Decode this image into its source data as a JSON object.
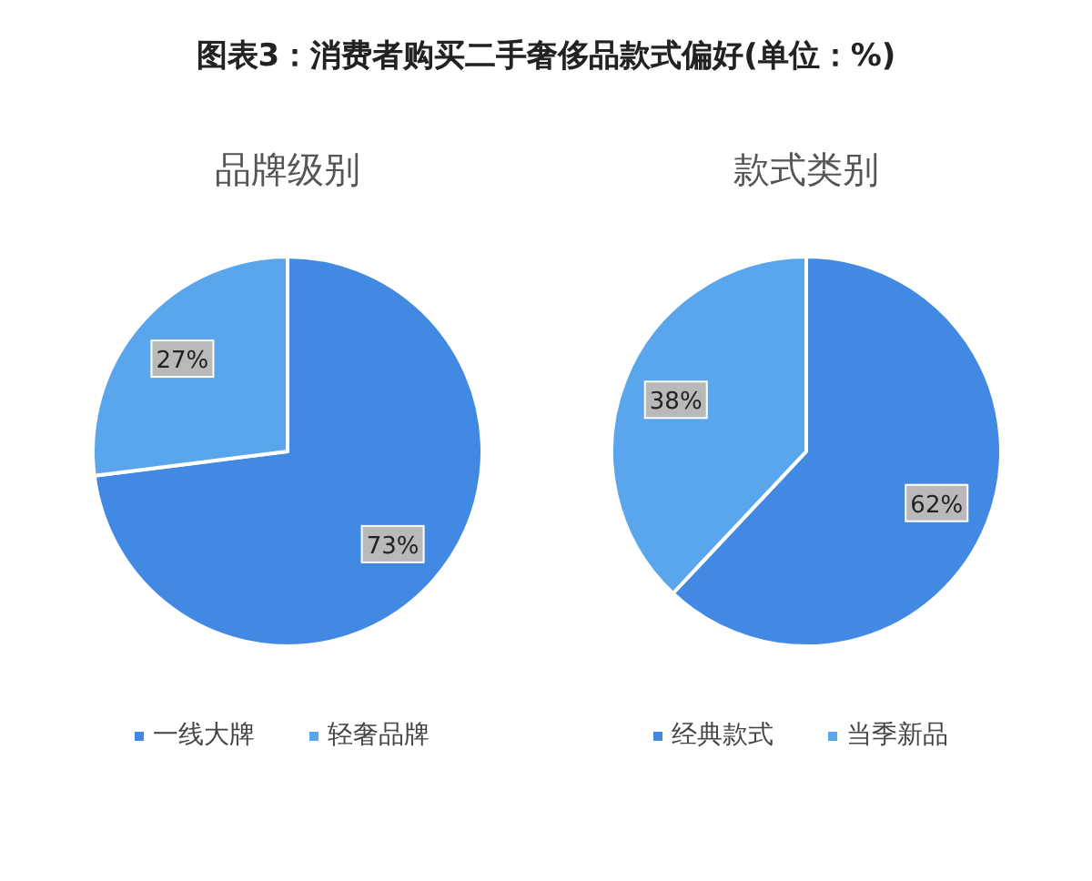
{
  "chart_data": [
    {
      "type": "pie",
      "title": "图表3：消费者购买二手奢侈品款式偏好(单位：%)",
      "subtitle": "品牌级别",
      "categories": [
        "一线大牌",
        "轻奢品牌"
      ],
      "values": [
        73,
        27
      ],
      "colors": [
        "#4289e3",
        "#5aa6ec"
      ],
      "value_labels": [
        "73%",
        "27%"
      ],
      "legend": "bottom"
    },
    {
      "type": "pie",
      "subtitle": "款式类别",
      "categories": [
        "经典款式",
        "当季新品"
      ],
      "values": [
        62,
        38
      ],
      "colors": [
        "#4289e3",
        "#5aa6ec"
      ],
      "value_labels": [
        "62%",
        "38%"
      ],
      "legend": "bottom"
    }
  ]
}
